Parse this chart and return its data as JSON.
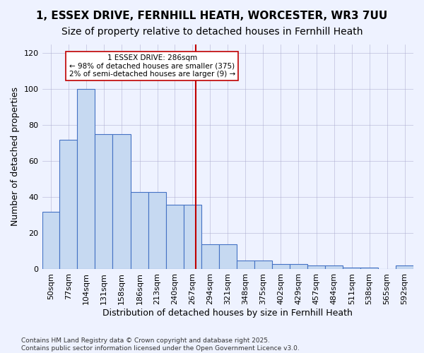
{
  "title1": "1, ESSEX DRIVE, FERNHILL HEATH, WORCESTER, WR3 7UU",
  "title2": "Size of property relative to detached houses in Fernhill Heath",
  "xlabel": "Distribution of detached houses by size in Fernhill Heath",
  "ylabel": "Number of detached properties",
  "bar_labels": [
    "50sqm",
    "77sqm",
    "104sqm",
    "131sqm",
    "158sqm",
    "186sqm",
    "213sqm",
    "240sqm",
    "267sqm",
    "294sqm",
    "321sqm",
    "348sqm",
    "375sqm",
    "402sqm",
    "429sqm",
    "457sqm",
    "484sqm",
    "511sqm",
    "538sqm",
    "565sqm",
    "592sqm"
  ],
  "bins": [
    50,
    77,
    104,
    131,
    158,
    186,
    213,
    240,
    267,
    294,
    321,
    348,
    375,
    402,
    429,
    457,
    484,
    511,
    538,
    565,
    592,
    619
  ],
  "counts": [
    32,
    72,
    100,
    75,
    75,
    43,
    43,
    36,
    36,
    14,
    14,
    5,
    5,
    3,
    3,
    2,
    2,
    1,
    1,
    0,
    2
  ],
  "bar_color": "#c6d9f1",
  "bar_edge_color": "#4472c4",
  "vline_x": 286,
  "vline_color": "#c00000",
  "annotation_text": "1 ESSEX DRIVE: 286sqm\n← 98% of detached houses are smaller (375)\n2% of semi-detached houses are larger (9) →",
  "annotation_box_color": "#ffffff",
  "annotation_box_edge": "#c00000",
  "ylim": [
    0,
    125
  ],
  "yticks": [
    0,
    20,
    40,
    60,
    80,
    100,
    120
  ],
  "background_color": "#eef2ff",
  "footer": "Contains HM Land Registry data © Crown copyright and database right 2025.\nContains public sector information licensed under the Open Government Licence v3.0.",
  "title_fontsize": 11,
  "subtitle_fontsize": 10,
  "axis_label_fontsize": 9,
  "tick_fontsize": 8
}
